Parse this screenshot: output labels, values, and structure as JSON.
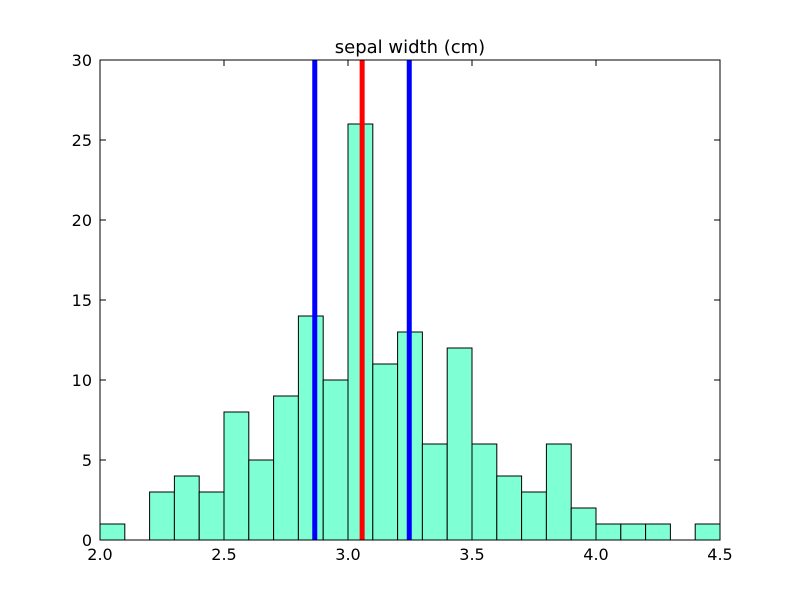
{
  "chart_data": {
    "type": "bar",
    "title": "sepal width (cm)",
    "xlabel": "",
    "ylabel": "",
    "xlim": [
      2.0,
      4.5
    ],
    "ylim": [
      0,
      30
    ],
    "xticks": [
      2.0,
      2.5,
      3.0,
      3.5,
      4.0,
      4.5
    ],
    "yticks": [
      0,
      5,
      10,
      15,
      20,
      25,
      30
    ],
    "xtick_labels": [
      "2.0",
      "2.5",
      "3.0",
      "3.5",
      "4.0",
      "4.5"
    ],
    "ytick_labels": [
      "0",
      "5",
      "10",
      "15",
      "20",
      "25",
      "30"
    ],
    "bin_edges": [
      2.0,
      2.1,
      2.2,
      2.3,
      2.4,
      2.5,
      2.6,
      2.7,
      2.8,
      2.9,
      3.0,
      3.1,
      3.2,
      3.3,
      3.4,
      3.5,
      3.6,
      3.7,
      3.8,
      3.9,
      4.0,
      4.1,
      4.2,
      4.3,
      4.4,
      4.5
    ],
    "values": [
      1,
      0,
      3,
      4,
      3,
      8,
      5,
      9,
      14,
      10,
      26,
      11,
      13,
      6,
      12,
      6,
      4,
      3,
      6,
      2,
      1,
      1,
      1,
      0,
      1
    ],
    "bar_color": "#7fffd4",
    "vertical_lines": [
      {
        "x": 2.866,
        "color": "#0000ff"
      },
      {
        "x": 3.057,
        "color": "#ff0000"
      },
      {
        "x": 3.247,
        "color": "#0000ff"
      }
    ],
    "grid": false
  }
}
